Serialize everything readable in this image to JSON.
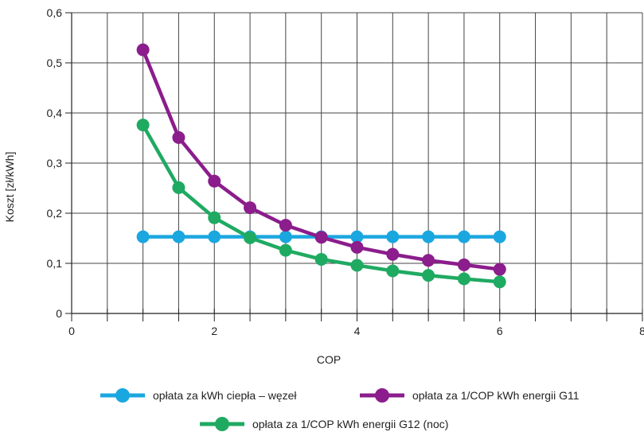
{
  "chart_data": {
    "type": "line",
    "title": "",
    "xlabel": "COP",
    "ylabel": "Koszt [zł/kWh]",
    "xlim": [
      0,
      8
    ],
    "ylim": [
      0,
      0.6
    ],
    "xticks": [
      0,
      2,
      4,
      6,
      8
    ],
    "xtick_labels": [
      "0",
      "2",
      "4",
      "6",
      "8"
    ],
    "yticks": [
      0,
      0.1,
      0.2,
      0.3,
      0.4,
      0.5,
      0.6
    ],
    "ytick_labels": [
      "0",
      "0,1",
      "0,2",
      "0,3",
      "0,4",
      "0,5",
      "0,6"
    ],
    "grid": true,
    "legend_position": "bottom",
    "x": [
      1,
      1.5,
      2,
      2.5,
      3,
      3.5,
      4,
      4.5,
      5,
      5.5,
      6
    ],
    "series": [
      {
        "name": "opłata za kWh ciepła – węzeł",
        "color": "#1aa7e0",
        "values": [
          0.153,
          0.153,
          0.153,
          0.153,
          0.153,
          0.153,
          0.153,
          0.153,
          0.153,
          0.153,
          0.153
        ]
      },
      {
        "name": "opłata za 1/COP kWh energii G11",
        "color": "#8b1d8c",
        "values": [
          0.526,
          0.351,
          0.264,
          0.211,
          0.176,
          0.152,
          0.132,
          0.118,
          0.106,
          0.097,
          0.088
        ]
      },
      {
        "name": "opłata za 1/COP kWh energii G12 (noc)",
        "color": "#1faa62",
        "values": [
          0.376,
          0.251,
          0.191,
          0.151,
          0.126,
          0.108,
          0.096,
          0.085,
          0.076,
          0.069,
          0.063
        ]
      }
    ]
  }
}
